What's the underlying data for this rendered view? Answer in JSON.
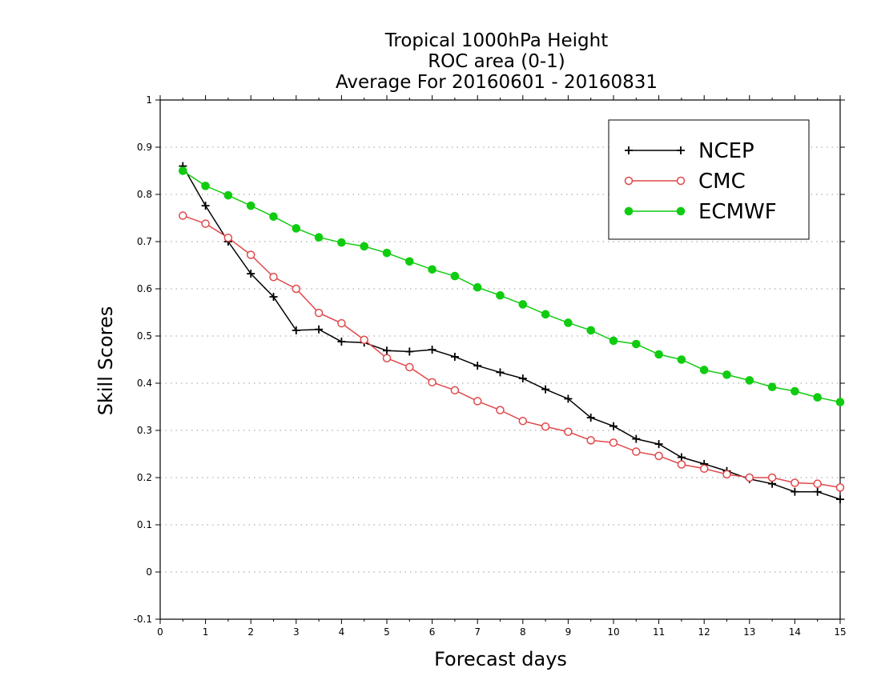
{
  "chart_data": {
    "type": "line",
    "title_lines": [
      "Tropical 1000hPa Height",
      "ROC area (0-1)",
      "Average For 20160601 - 20160831"
    ],
    "xlabel": "Forecast days",
    "ylabel": "Skill Scores",
    "xlim": [
      0,
      15
    ],
    "ylim": [
      -0.1,
      1
    ],
    "x_ticks": [
      "0",
      "1",
      "2",
      "3",
      "4",
      "5",
      "6",
      "7",
      "8",
      "9",
      "10",
      "11",
      "12",
      "13",
      "14",
      "15"
    ],
    "y_ticks": [
      "-0.1",
      "0",
      "0.1",
      "0.2",
      "0.3",
      "0.4",
      "0.5",
      "0.6",
      "0.7",
      "0.8",
      "0.9",
      "1"
    ],
    "grid": "horizontal dotted",
    "legend_position": "top-right",
    "x": [
      0.5,
      1,
      1.5,
      2,
      2.5,
      3,
      3.5,
      4,
      4.5,
      5,
      5.5,
      6,
      6.5,
      7,
      7.5,
      8,
      8.5,
      9,
      9.5,
      10,
      10.5,
      11,
      11.5,
      12,
      12.5,
      13,
      13.5,
      14,
      14.5,
      15
    ],
    "series": [
      {
        "name": "NCEP",
        "color": "#000000",
        "marker": "plus",
        "values": [
          0.86,
          0.776,
          0.7,
          0.632,
          0.583,
          0.512,
          0.514,
          0.488,
          0.486,
          0.469,
          0.467,
          0.471,
          0.456,
          0.437,
          0.423,
          0.41,
          0.387,
          0.367,
          0.327,
          0.309,
          0.282,
          0.271,
          0.243,
          0.229,
          0.214,
          0.197,
          0.187,
          0.17,
          0.17,
          0.154
        ]
      },
      {
        "name": "CMC",
        "color": "#e0484a",
        "marker": "open-circle",
        "values": [
          0.755,
          0.738,
          0.708,
          0.672,
          0.625,
          0.6,
          0.549,
          0.527,
          0.492,
          0.453,
          0.434,
          0.402,
          0.385,
          0.362,
          0.343,
          0.32,
          0.308,
          0.297,
          0.279,
          0.274,
          0.255,
          0.246,
          0.228,
          0.219,
          0.207,
          0.2,
          0.2,
          0.189,
          0.187,
          0.179
        ]
      },
      {
        "name": "ECMWF",
        "color": "#10cc10",
        "marker": "filled-circle",
        "values": [
          0.85,
          0.818,
          0.798,
          0.776,
          0.753,
          0.728,
          0.709,
          0.698,
          0.69,
          0.676,
          0.658,
          0.641,
          0.627,
          0.603,
          0.586,
          0.567,
          0.546,
          0.528,
          0.512,
          0.49,
          0.483,
          0.461,
          0.45,
          0.428,
          0.418,
          0.406,
          0.392,
          0.383,
          0.37,
          0.36
        ]
      }
    ]
  }
}
